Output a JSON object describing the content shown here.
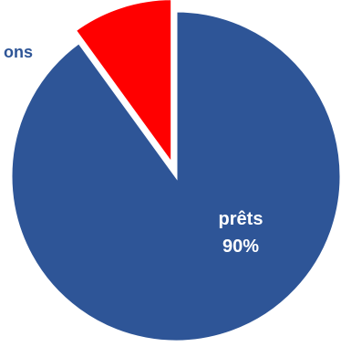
{
  "chart_data": {
    "type": "pie",
    "slices": [
      {
        "label": "prêts",
        "value": 90,
        "value_label": "90%",
        "color": "#2e5597"
      },
      {
        "label": "ons",
        "value": 10,
        "value_label": "",
        "color": "#ff0000"
      }
    ],
    "legend": "none"
  }
}
